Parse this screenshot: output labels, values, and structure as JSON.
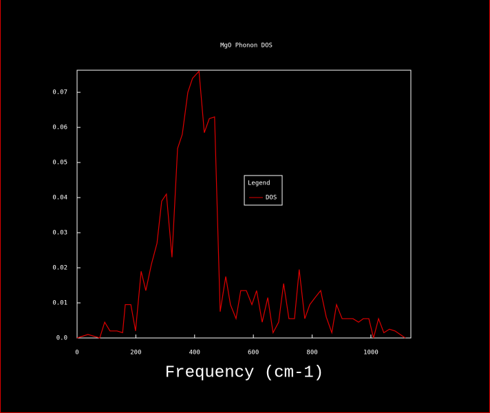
{
  "chart_data": {
    "type": "line",
    "title": "MgO Phonon DOS",
    "x_label": "Frequency (cm-1)",
    "legend_title": "Legend",
    "x": [
      0,
      37,
      77,
      94,
      112,
      136,
      155,
      164,
      183,
      199,
      218,
      234,
      253,
      272,
      288,
      304,
      323,
      342,
      358,
      377,
      393,
      415,
      433,
      450,
      468,
      487,
      506,
      522,
      541,
      557,
      576,
      595,
      611,
      630,
      649,
      667,
      686,
      703,
      721,
      740,
      756,
      775,
      792,
      810,
      829,
      848,
      867,
      883,
      902,
      920,
      939,
      958,
      974,
      993,
      1009,
      1026,
      1044,
      1063,
      1082,
      1117
    ],
    "series": [
      {
        "name": "DOS",
        "color": "#e00000",
        "values": [
          0,
          0.001,
          0,
          0.0045,
          0.002,
          0.002,
          0.0015,
          0.0095,
          0.0095,
          0.002,
          0.019,
          0.0135,
          0.021,
          0.027,
          0.039,
          0.041,
          0.023,
          0.054,
          0.058,
          0.07,
          0.074,
          0.076,
          0.0585,
          0.0625,
          0.063,
          0.0075,
          0.0175,
          0.0095,
          0.0055,
          0.0135,
          0.0135,
          0.0095,
          0.0135,
          0.0045,
          0.0115,
          0.0015,
          0.0045,
          0.0155,
          0.0055,
          0.0055,
          0.0195,
          0.0055,
          0.0095,
          0.0115,
          0.0135,
          0.006,
          0.0015,
          0.0095,
          0.0055,
          0.0055,
          0.0055,
          0.0045,
          0.0055,
          0.0055,
          0,
          0.0055,
          0.0015,
          0.0025,
          0.002,
          0
        ]
      }
    ],
    "xlim": [
      0,
      1136
    ],
    "xticks": [
      0,
      200,
      400,
      600,
      800,
      1000
    ],
    "ylim": [
      0,
      0.0763
    ],
    "yticks": [
      {
        "value": 0,
        "label": "0.0"
      },
      0.01,
      0.02,
      0.03,
      0.04,
      0.05,
      0.06,
      0.07
    ]
  }
}
